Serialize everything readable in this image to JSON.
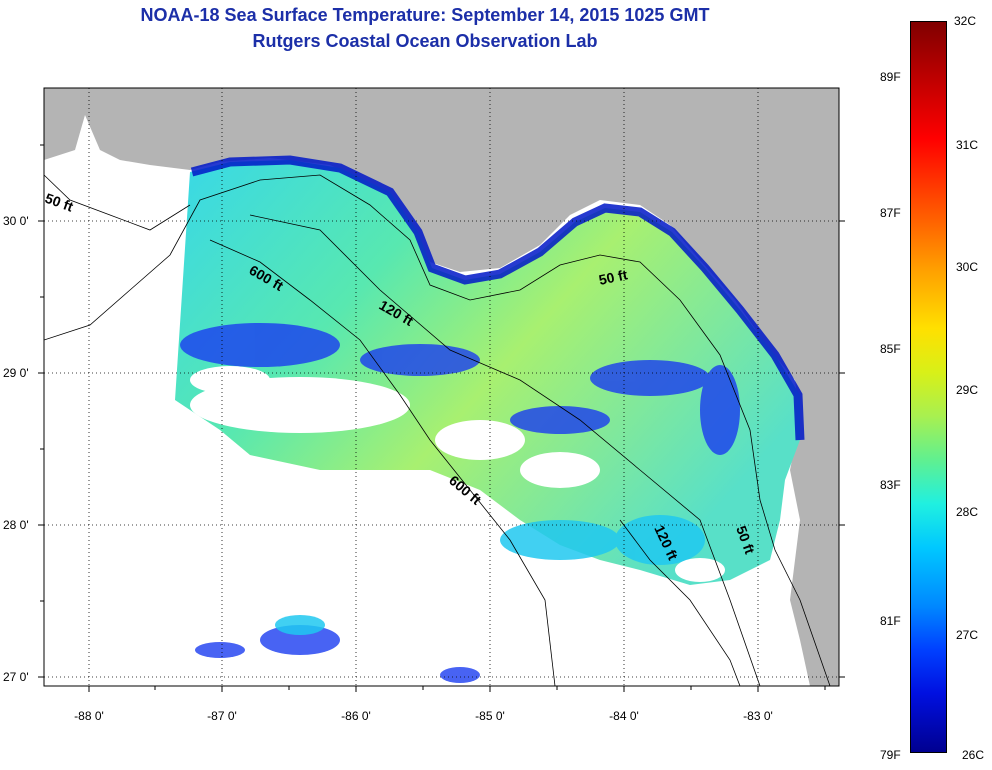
{
  "title": {
    "line1": "NOAA-18 Sea Surface Temperature:  September 14, 2015 1025 GMT",
    "line2": "Rutgers Coastal Ocean Observation Lab"
  },
  "axes": {
    "longitude_labels": [
      "-88 0'",
      "-87 0'",
      "-86 0'",
      "-85 0'",
      "-84 0'",
      "-83 0'"
    ],
    "latitude_labels": [
      "30 0'",
      "29 0'",
      "28 0'",
      "27 0'"
    ]
  },
  "contours": [
    "50 ft",
    "600 ft",
    "120 ft",
    "50 ft",
    "600 ft",
    "120 ft",
    "50 ft"
  ],
  "colorbar": {
    "celsius": [
      "32C",
      "31C",
      "30C",
      "29C",
      "28C",
      "27C",
      "26C"
    ],
    "fahrenheit": [
      "89F",
      "87F",
      "85F",
      "83F",
      "81F",
      "79F"
    ]
  },
  "colors": {
    "land": "#b4b4b4",
    "cloud": "#ffffff",
    "title": "#1c2fa8"
  }
}
